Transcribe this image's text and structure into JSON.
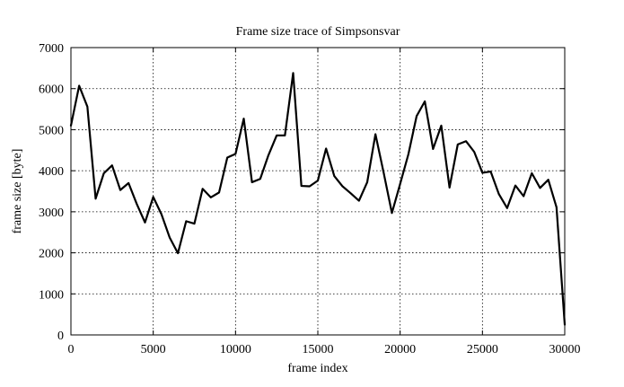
{
  "chart_data": {
    "type": "line",
    "title": "Frame size trace of Simpsonsvar",
    "xlabel": "frame index",
    "ylabel": "frame size [byte]",
    "xlim": [
      0,
      30000
    ],
    "ylim": [
      0,
      7000
    ],
    "x_ticks": [
      0,
      5000,
      10000,
      15000,
      20000,
      25000,
      30000
    ],
    "y_ticks": [
      0,
      1000,
      2000,
      3000,
      4000,
      5000,
      6000,
      7000
    ],
    "grid": true,
    "grid_style": "dotted",
    "line_color": "#000000",
    "series": [
      {
        "x": [
          0,
          500,
          1000,
          1500,
          2000,
          2500,
          3000,
          3500,
          4000,
          4500,
          5000,
          5500,
          6000,
          6500,
          7000,
          7500,
          8000,
          8500,
          9000,
          9500,
          10000,
          10500,
          11000,
          11500,
          12000,
          12500,
          13000,
          13500,
          14000,
          14500,
          15000,
          15500,
          16000,
          16500,
          17000,
          17500,
          18000,
          18500,
          19000,
          19500,
          20000,
          20500,
          21000,
          21500,
          22000,
          22500,
          23000,
          23500,
          24000,
          24500,
          25000,
          25500,
          26000,
          26500,
          27000,
          27500,
          28000,
          28500,
          29000,
          29500,
          30000
        ],
        "y": [
          5100,
          6070,
          5560,
          3320,
          3940,
          4130,
          3530,
          3700,
          3190,
          2740,
          3360,
          2940,
          2370,
          1990,
          2770,
          2710,
          3560,
          3350,
          3470,
          4320,
          4410,
          5270,
          3720,
          3800,
          4380,
          4860,
          4860,
          6380,
          3630,
          3620,
          3760,
          4540,
          3870,
          3620,
          3450,
          3270,
          3720,
          4890,
          3950,
          2970,
          3680,
          4400,
          5330,
          5690,
          4530,
          5100,
          3590,
          4640,
          4720,
          4460,
          3950,
          3980,
          3430,
          3090,
          3640,
          3380,
          3940,
          3580,
          3780,
          3110,
          250
        ]
      }
    ]
  }
}
